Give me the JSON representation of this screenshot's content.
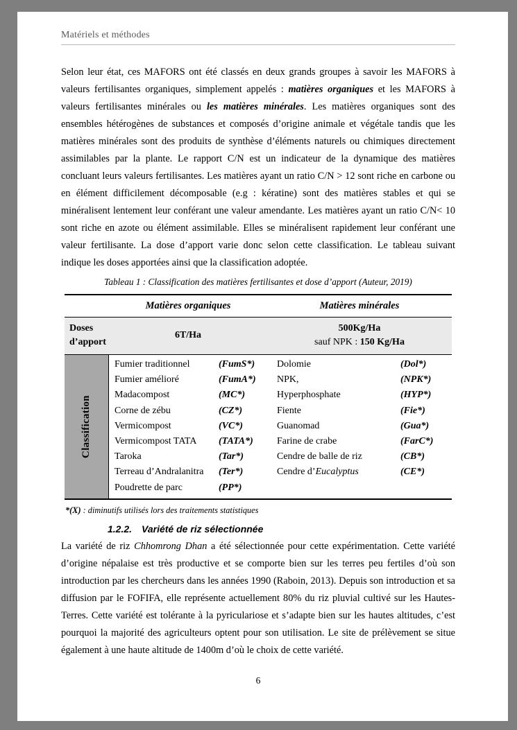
{
  "viewer": {
    "background_color": "#7f7f7f",
    "page_color": "#ffffff"
  },
  "header": {
    "title": "Matériels et méthodes"
  },
  "paragraph1": {
    "seg_intro": "Selon leur état, ces MAFORS ont été classés en deux grands groupes à savoir les MAFORS à valeurs fertilisantes organiques, simplement appelés : ",
    "seg_bold1": "matières organiques",
    "seg_mid": " et les MAFORS à valeurs fertilisantes minérales ou ",
    "seg_bold2": "les matières minérales",
    "seg_rest": ". Les matières organiques sont des ensembles hétérogènes de substances et composés d’origine animale et végétale tandis que les matières minérales sont des produits de synthèse d’éléments naturels ou chimiques directement assimilables par la plante. Le rapport C/N est un indicateur de la dynamique des matières concluant leurs valeurs fertilisantes. Les matières ayant un ratio C/N > 12 sont riche en carbone ou en élément difficilement décomposable (e.g : kératine) sont des matières stables et qui se minéralisent lentement leur conférant une valeur amendante. Les matières ayant un ratio C/N< 10 sont riche en azote ou élément assimilable. Elles se minéralisent rapidement leur conférant une valeur fertilisante. La dose d’apport varie donc selon cette classification. Le tableau suivant indique les doses apportées ainsi que la classification adoptée."
  },
  "table_caption": "Tableau 1 : Classification des matières fertilisantes et dose d’apport (Auteur, 2019)",
  "table": {
    "group_headers": [
      "Matières organiques",
      "Matières minérales"
    ],
    "doses": {
      "label_line1": "Doses",
      "label_line2": "d’apport",
      "organic": "6T/Ha",
      "mineral_line1": "500Kg/Ha",
      "mineral_line2_prefix": "sauf NPK : ",
      "mineral_line2_value": "150 Kg/Ha"
    },
    "classification_label": "Classification",
    "rows": [
      {
        "organic_name": "Fumier traditionnel",
        "organic_abbr": "(FumS*)",
        "mineral_name": "Dolomie",
        "mineral_abbr": "(Dol*)"
      },
      {
        "organic_name": "Fumier amélioré",
        "organic_abbr": "(FumA*)",
        "mineral_name": "NPK,",
        "mineral_abbr": "(NPK*)"
      },
      {
        "organic_name": "Madacompost",
        "organic_abbr": "(MC*)",
        "mineral_name": "Hyperphosphate",
        "mineral_abbr": "(HYP*)"
      },
      {
        "organic_name": "Corne de zébu",
        "organic_abbr": "(CZ*)",
        "mineral_name": "Fiente",
        "mineral_abbr": "(Fie*)"
      },
      {
        "organic_name": "Vermicompost",
        "organic_abbr": "(VC*)",
        "mineral_name": "Guanomad",
        "mineral_abbr": "(Gua*)"
      },
      {
        "organic_name": "Vermicompost TATA",
        "organic_abbr": "(TATA*)",
        "mineral_name": "Farine de crabe",
        "mineral_abbr": "(FarC*)"
      },
      {
        "organic_name": "Taroka",
        "organic_abbr": "(Tar*)",
        "mineral_name": "Cendre de balle de riz",
        "mineral_abbr": "(CB*)"
      },
      {
        "organic_name": "Terreau d’Andralanitra",
        "organic_abbr": "(Ter*)",
        "mineral_name": "Cendre d’",
        "mineral_name_italic": "Eucalyptus",
        "mineral_abbr": "(CE*)"
      },
      {
        "organic_name": "Poudrette de parc",
        "organic_abbr": "(PP*)",
        "mineral_name": "",
        "mineral_abbr": ""
      }
    ],
    "colors": {
      "doses_row_bg": "#eaeaea",
      "classification_cell_bg": "#a8a8a8",
      "border_color": "#000000"
    }
  },
  "footnote": {
    "marker": "*(X)",
    "text": " : diminutifs utilisés lors des traitements statistiques"
  },
  "section_heading": {
    "number": "1.2.2.",
    "title": "Variété de riz sélectionnée"
  },
  "paragraph2": {
    "seg_intro": "La variété de riz ",
    "seg_italic": "Chhomrong Dhan",
    "seg_rest": " a été sélectionnée pour cette expérimentation. Cette variété d’origine népalaise est très productive et se comporte bien sur les terres peu fertiles d’où son introduction par les chercheurs dans les années 1990 (Raboin, 2013). Depuis son introduction et sa diffusion par le FOFIFA, elle représente actuellement 80% du riz pluvial cultivé sur les Hautes-Terres. Cette variété est tolérante à la pyriculariose et s’adapte bien sur les hautes altitudes, c’est pourquoi la majorité des agriculteurs optent pour son utilisation. Le site de prélèvement se situe également à une haute altitude de 1400m d’où le choix de cette variété."
  },
  "footer": {
    "page_number": "6"
  }
}
